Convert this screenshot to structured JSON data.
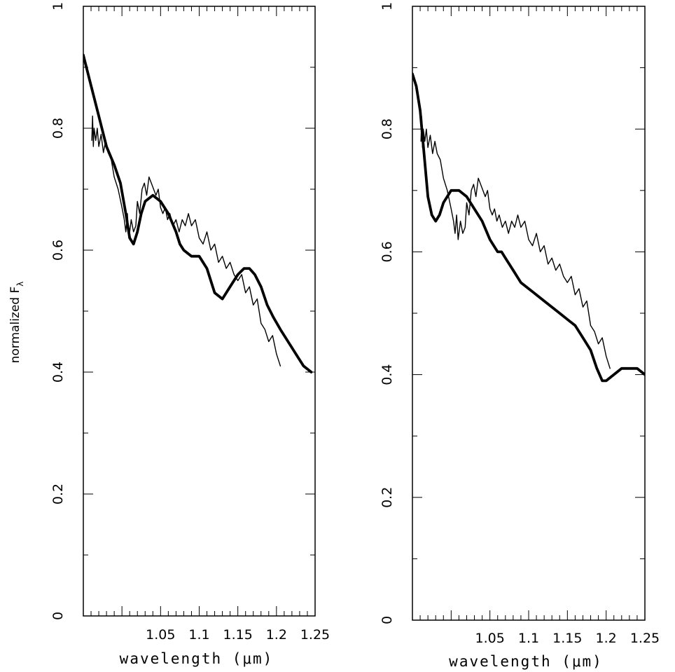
{
  "chart_data": [
    {
      "type": "line",
      "xlabel": "wavelength (μm)",
      "ylabel": "normalized F",
      "ylabel_subscript": "λ",
      "xlim": [
        0.95,
        1.25
      ],
      "ylim": [
        0,
        1
      ],
      "xticks": [
        1.05,
        1.1,
        1.15,
        1.2,
        1.25
      ],
      "xtick_labels": [
        "1.05",
        "1.1",
        "1.15",
        "1.2",
        "1.25"
      ],
      "yticks": [
        0,
        0.2,
        0.4,
        0.6,
        0.8,
        1
      ],
      "ytick_labels": [
        "0",
        "0.2",
        "0.4",
        "0.6",
        "0.8",
        "1"
      ],
      "grid": false,
      "series": [
        {
          "style": "thin",
          "color": "#000000",
          "x": [
            0.961,
            0.962,
            0.963,
            0.964,
            0.966,
            0.968,
            0.97,
            0.973,
            0.976,
            0.979,
            0.982,
            0.986,
            0.99,
            0.995,
            1.0,
            1.003,
            1.005,
            1.007,
            1.009,
            1.012,
            1.015,
            1.018,
            1.02,
            1.023,
            1.026,
            1.029,
            1.032,
            1.035,
            1.038,
            1.041,
            1.044,
            1.047,
            1.05,
            1.053,
            1.056,
            1.059,
            1.062,
            1.066,
            1.07,
            1.074,
            1.078,
            1.082,
            1.086,
            1.09,
            1.095,
            1.1,
            1.105,
            1.11,
            1.115,
            1.12,
            1.125,
            1.13,
            1.135,
            1.14,
            1.145,
            1.15,
            1.155,
            1.16,
            1.165,
            1.17,
            1.175,
            1.18,
            1.185,
            1.19,
            1.195,
            1.2,
            1.205
          ],
          "y": [
            0.78,
            0.82,
            0.77,
            0.8,
            0.78,
            0.8,
            0.77,
            0.79,
            0.76,
            0.78,
            0.76,
            0.75,
            0.72,
            0.7,
            0.67,
            0.65,
            0.63,
            0.66,
            0.62,
            0.65,
            0.63,
            0.64,
            0.68,
            0.66,
            0.7,
            0.71,
            0.69,
            0.72,
            0.71,
            0.7,
            0.69,
            0.7,
            0.67,
            0.66,
            0.67,
            0.65,
            0.66,
            0.64,
            0.65,
            0.63,
            0.65,
            0.64,
            0.66,
            0.64,
            0.65,
            0.62,
            0.61,
            0.63,
            0.6,
            0.61,
            0.58,
            0.59,
            0.57,
            0.58,
            0.56,
            0.55,
            0.56,
            0.53,
            0.54,
            0.51,
            0.52,
            0.48,
            0.47,
            0.45,
            0.46,
            0.43,
            0.41
          ]
        },
        {
          "style": "thick",
          "color": "#000000",
          "x": [
            0.95,
            0.96,
            0.97,
            0.98,
            0.99,
            0.998,
            1.005,
            1.01,
            1.015,
            1.02,
            1.025,
            1.03,
            1.04,
            1.05,
            1.06,
            1.07,
            1.075,
            1.08,
            1.09,
            1.1,
            1.11,
            1.12,
            1.13,
            1.14,
            1.15,
            1.158,
            1.165,
            1.172,
            1.18,
            1.188,
            1.196,
            1.205,
            1.215,
            1.225,
            1.235,
            1.245
          ],
          "y": [
            0.92,
            0.87,
            0.82,
            0.77,
            0.74,
            0.71,
            0.66,
            0.62,
            0.61,
            0.63,
            0.66,
            0.68,
            0.69,
            0.68,
            0.66,
            0.63,
            0.61,
            0.6,
            0.59,
            0.59,
            0.57,
            0.53,
            0.52,
            0.54,
            0.56,
            0.57,
            0.57,
            0.56,
            0.54,
            0.51,
            0.49,
            0.47,
            0.45,
            0.43,
            0.41,
            0.4
          ]
        }
      ]
    },
    {
      "type": "line",
      "xlabel": "wavelength (μm)",
      "xlim": [
        0.95,
        1.25
      ],
      "ylim": [
        0,
        1
      ],
      "xticks": [
        1.05,
        1.1,
        1.15,
        1.2,
        1.25
      ],
      "xtick_labels": [
        "1.05",
        "1.1",
        "1.15",
        "1.2",
        "1.25"
      ],
      "yticks": [
        0,
        0.2,
        0.4,
        0.6,
        0.8,
        1
      ],
      "ytick_labels": [
        "0",
        "0.2",
        "0.4",
        "0.6",
        "0.8",
        "1"
      ],
      "grid": false,
      "series": [
        {
          "style": "thin",
          "color": "#000000",
          "x": [
            0.961,
            0.962,
            0.963,
            0.964,
            0.966,
            0.968,
            0.97,
            0.973,
            0.976,
            0.979,
            0.982,
            0.986,
            0.99,
            0.995,
            1.0,
            1.003,
            1.005,
            1.007,
            1.009,
            1.012,
            1.015,
            1.018,
            1.02,
            1.023,
            1.026,
            1.029,
            1.032,
            1.035,
            1.038,
            1.041,
            1.044,
            1.047,
            1.05,
            1.053,
            1.056,
            1.059,
            1.062,
            1.066,
            1.07,
            1.074,
            1.078,
            1.082,
            1.086,
            1.09,
            1.095,
            1.1,
            1.105,
            1.11,
            1.115,
            1.12,
            1.125,
            1.13,
            1.135,
            1.14,
            1.145,
            1.15,
            1.155,
            1.16,
            1.165,
            1.17,
            1.175,
            1.18,
            1.185,
            1.19,
            1.195,
            1.2,
            1.205
          ],
          "y": [
            0.78,
            0.82,
            0.77,
            0.8,
            0.78,
            0.8,
            0.77,
            0.79,
            0.76,
            0.78,
            0.76,
            0.75,
            0.72,
            0.7,
            0.67,
            0.65,
            0.63,
            0.66,
            0.62,
            0.65,
            0.63,
            0.64,
            0.68,
            0.66,
            0.7,
            0.71,
            0.69,
            0.72,
            0.71,
            0.7,
            0.69,
            0.7,
            0.67,
            0.66,
            0.67,
            0.65,
            0.66,
            0.64,
            0.65,
            0.63,
            0.65,
            0.64,
            0.66,
            0.64,
            0.65,
            0.62,
            0.61,
            0.63,
            0.6,
            0.61,
            0.58,
            0.59,
            0.57,
            0.58,
            0.56,
            0.55,
            0.56,
            0.53,
            0.54,
            0.51,
            0.52,
            0.48,
            0.47,
            0.45,
            0.46,
            0.43,
            0.41
          ]
        },
        {
          "style": "thick",
          "color": "#000000",
          "x": [
            0.95,
            0.955,
            0.96,
            0.965,
            0.97,
            0.975,
            0.98,
            0.985,
            0.99,
            1.0,
            1.01,
            1.02,
            1.03,
            1.04,
            1.05,
            1.06,
            1.065,
            1.07,
            1.08,
            1.09,
            1.1,
            1.11,
            1.12,
            1.13,
            1.14,
            1.15,
            1.16,
            1.17,
            1.18,
            1.188,
            1.195,
            1.2,
            1.21,
            1.22,
            1.23,
            1.24,
            1.25
          ],
          "y": [
            0.89,
            0.87,
            0.83,
            0.76,
            0.69,
            0.66,
            0.65,
            0.66,
            0.68,
            0.7,
            0.7,
            0.69,
            0.67,
            0.65,
            0.62,
            0.6,
            0.6,
            0.59,
            0.57,
            0.55,
            0.54,
            0.53,
            0.52,
            0.51,
            0.5,
            0.49,
            0.48,
            0.46,
            0.44,
            0.41,
            0.39,
            0.39,
            0.4,
            0.41,
            0.41,
            0.41,
            0.4
          ]
        }
      ]
    }
  ]
}
